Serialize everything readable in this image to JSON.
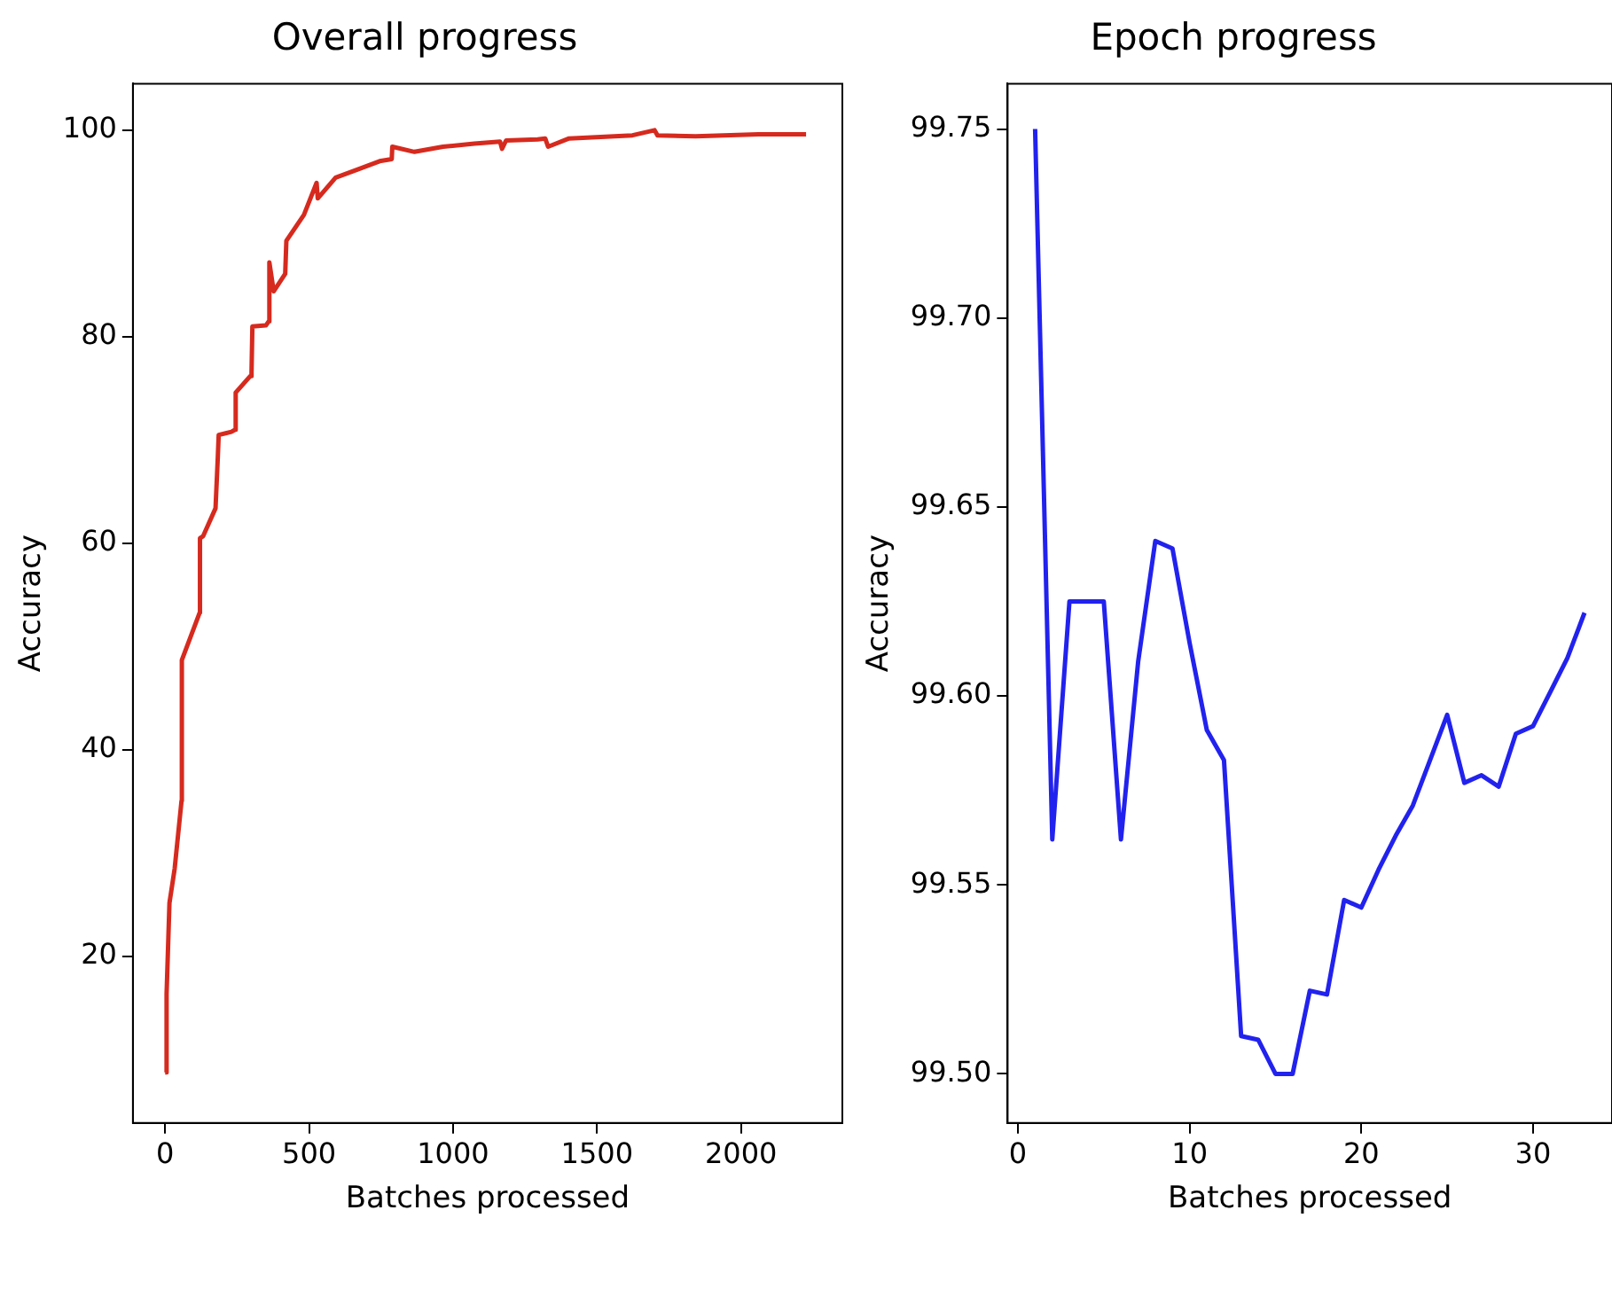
{
  "chart_data": [
    {
      "type": "line",
      "title": "Overall progress",
      "xlabel": "Batches processed",
      "ylabel": "Accuracy",
      "xlim": [
        -112,
        2352
      ],
      "ylim": [
        3.9,
        104.5
      ],
      "xticks": [
        0,
        500,
        1000,
        1500,
        2000
      ],
      "yticks": [
        20,
        40,
        60,
        80,
        100
      ],
      "grid": false,
      "legend": false,
      "marker": "none",
      "line_style": "solid",
      "series": [
        {
          "color": "#d62a1e",
          "x": [
            0,
            5,
            15,
            33,
            57,
            58,
            120,
            121,
            132,
            175,
            183,
            186,
            230,
            243,
            245,
            296,
            300,
            303,
            350,
            360,
            362,
            377,
            417,
            421,
            482,
            526,
            530,
            592,
            669,
            745,
            787,
            789,
            866,
            965,
            1074,
            1163,
            1170,
            1184,
            1294,
            1320,
            1330,
            1403,
            1623,
            1700,
            1710,
            1842,
            2061,
            2226
          ],
          "values": [
            8.8,
            16.4,
            25.2,
            28.5,
            35.1,
            48.7,
            53.3,
            60.5,
            60.7,
            63.4,
            68.4,
            70.5,
            70.8,
            71,
            74.6,
            76.2,
            76.5,
            81.0,
            81.1,
            81.5,
            87.2,
            84.4,
            86.1,
            89.3,
            91.8,
            94.9,
            93.4,
            95.4,
            96.2,
            97.0,
            97.2,
            98.4,
            97.9,
            98.4,
            98.7,
            98.9,
            98.2,
            99.0,
            99.1,
            99.2,
            98.4,
            99.2,
            99.5,
            100.0,
            99.5,
            99.4,
            99.6,
            99.6
          ]
        }
      ]
    },
    {
      "type": "line",
      "title": "Epoch progress",
      "xlabel": "Batches processed",
      "ylabel": "Accuracy",
      "xlim": [
        -0.6,
        34.6
      ],
      "ylim": [
        99.487,
        99.762
      ],
      "xticks": [
        0,
        10,
        20,
        30
      ],
      "yticks": [
        {
          "value": 99.5,
          "label": "99.50"
        },
        {
          "value": 99.55,
          "label": "99.55"
        },
        {
          "value": 99.6,
          "label": "99.60"
        },
        {
          "value": 99.65,
          "label": "99.65"
        },
        {
          "value": 99.7,
          "label": "99.70"
        },
        {
          "value": 99.75,
          "label": "99.75"
        }
      ],
      "grid": false,
      "legend": false,
      "marker": "none",
      "line_style": "solid",
      "series": [
        {
          "color": "#2222ee",
          "x": [
            1,
            2,
            3,
            4,
            5,
            6,
            7,
            8,
            9,
            10,
            11,
            12,
            13,
            14,
            15,
            16,
            17,
            18,
            19,
            20,
            21,
            22,
            23,
            24,
            25,
            26,
            27,
            28,
            29,
            30,
            31,
            32,
            33
          ],
          "values": [
            99.75,
            99.562,
            99.625,
            99.625,
            99.625,
            99.562,
            99.609,
            99.641,
            99.639,
            99.614,
            99.591,
            99.583,
            99.51,
            99.509,
            99.5,
            99.5,
            99.522,
            99.521,
            99.546,
            99.544,
            99.554,
            99.563,
            99.571,
            99.583,
            99.595,
            99.577,
            99.579,
            99.576,
            99.59,
            99.592,
            99.601,
            99.61,
            99.622
          ]
        }
      ]
    }
  ]
}
